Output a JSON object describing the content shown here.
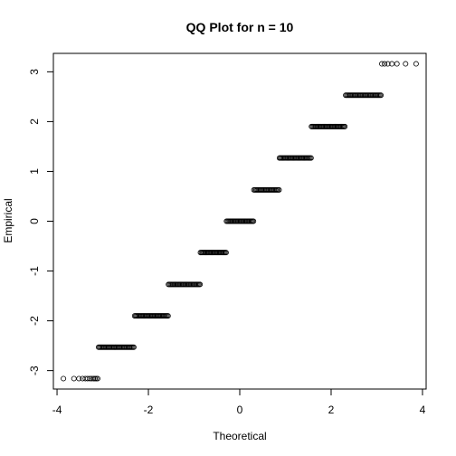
{
  "chart_data": {
    "type": "scatter",
    "title": "QQ Plot for n = 10",
    "xlabel": "Theoretical",
    "ylabel": "Empirical",
    "xlim": [
      -4.08,
      4.08
    ],
    "ylim": [
      -3.37,
      3.37
    ],
    "x_ticks": [
      -4,
      -2,
      0,
      2,
      4
    ],
    "y_ticks": [
      -3,
      -2,
      -1,
      0,
      1,
      2,
      3
    ],
    "x_tick_labels": [
      "-4",
      "-2",
      "0",
      "2",
      "4"
    ],
    "y_tick_labels": [
      "-3",
      "-2",
      "-1",
      "0",
      "1",
      "2",
      "3"
    ],
    "grid": false,
    "marker": "open-circle",
    "levels": [
      {
        "y": -3.16,
        "x_points": [
          -3.86,
          -3.63,
          -3.52,
          -3.44,
          -3.38,
          -3.33,
          -3.28,
          -3.24,
          -3.2,
          -3.17,
          -3.14,
          -3.11
        ]
      },
      {
        "y": -2.53,
        "x_min": -3.09,
        "x_max": -2.32
      },
      {
        "y": -1.9,
        "x_min": -2.3,
        "x_max": -1.57
      },
      {
        "y": -1.27,
        "x_min": -1.56,
        "x_max": -0.87
      },
      {
        "y": -0.63,
        "x_min": -0.86,
        "x_max": -0.3
      },
      {
        "y": 0.0,
        "x_min": -0.29,
        "x_max": 0.3
      },
      {
        "y": 0.63,
        "x_min": 0.31,
        "x_max": 0.86
      },
      {
        "y": 1.27,
        "x_min": 0.87,
        "x_max": 1.56
      },
      {
        "y": 1.9,
        "x_min": 1.57,
        "x_max": 2.3
      },
      {
        "y": 2.53,
        "x_min": 2.32,
        "x_max": 3.09
      },
      {
        "y": 3.16,
        "x_points": [
          3.11,
          3.17,
          3.24,
          3.33,
          3.44,
          3.63,
          3.86
        ]
      }
    ]
  }
}
